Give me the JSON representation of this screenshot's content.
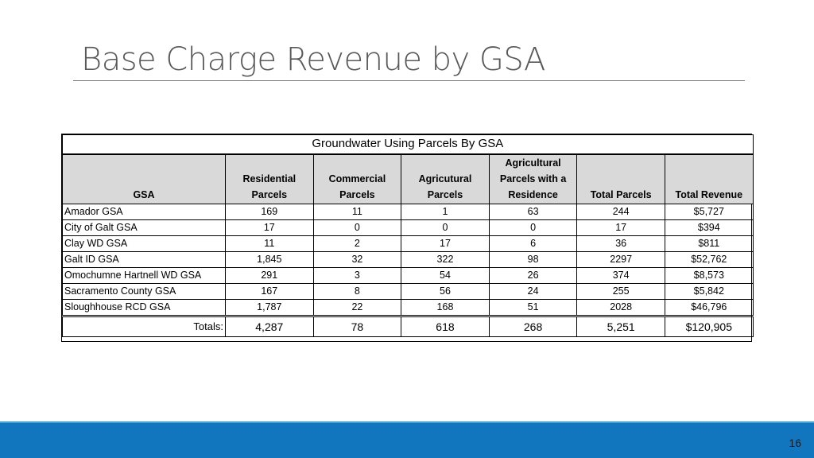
{
  "slide": {
    "title": "Base Charge Revenue by GSA",
    "page_number": "16"
  },
  "table": {
    "caption": "Groundwater Using Parcels By GSA",
    "headers": [
      [
        "GSA"
      ],
      [
        "Residential",
        "Parcels"
      ],
      [
        "Commercial",
        "Parcels"
      ],
      [
        "Agricutural",
        "Parcels"
      ],
      [
        "Agricultural",
        "Parcels with a",
        "Residence"
      ],
      [
        "Total Parcels"
      ],
      [
        "Total Revenue"
      ]
    ],
    "rows": [
      [
        "Amador GSA",
        "169",
        "11",
        "1",
        "63",
        "244",
        "$5,727"
      ],
      [
        "City of Galt GSA",
        "17",
        "0",
        "0",
        "0",
        "17",
        "$394"
      ],
      [
        "Clay WD GSA",
        "11",
        "2",
        "17",
        "6",
        "36",
        "$811"
      ],
      [
        "Galt ID GSA",
        "1,845",
        "32",
        "322",
        "98",
        "2297",
        "$52,762"
      ],
      [
        "Omochumne Hartnell WD GSA",
        "291",
        "3",
        "54",
        "26",
        "374",
        "$8,573"
      ],
      [
        "Sacramento County GSA",
        "167",
        "8",
        "56",
        "24",
        "255",
        "$5,842"
      ],
      [
        "Sloughhouse RCD GSA",
        "1,787",
        "22",
        "168",
        "51",
        "2028",
        "$46,796"
      ]
    ],
    "totals": [
      "Totals:",
      "4,287",
      "78",
      "618",
      "268",
      "5,251",
      "$120,905"
    ]
  },
  "colors": {
    "title": "#595959",
    "title_rule": "#2f8dbe",
    "header_fill": "#d9d9d9",
    "footer_band": "#1276bf",
    "footer_accent": "#3aa5dc"
  }
}
